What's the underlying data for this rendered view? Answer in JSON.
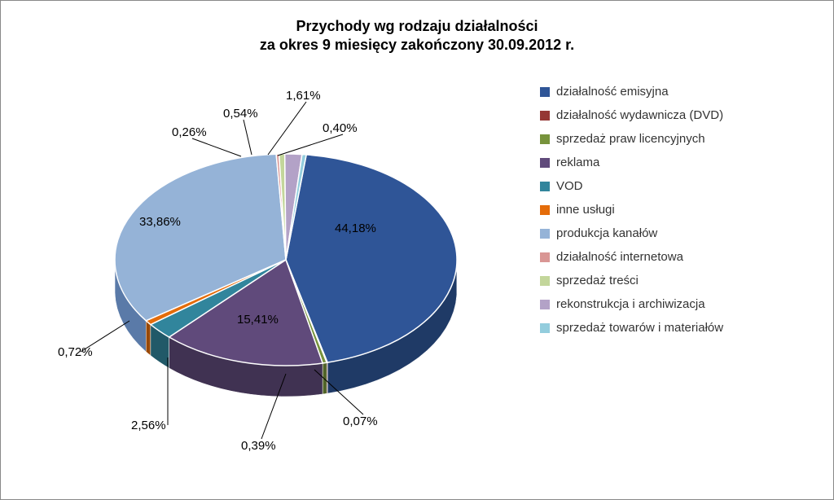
{
  "title": {
    "line1": "Przychody wg rodzaju działalności",
    "line2": "za okres 9 miesięcy zakończony 30.09.2012 r.",
    "fontsize": 18,
    "fontweight": "bold",
    "color": "#000000"
  },
  "chart": {
    "type": "pie-3d",
    "background_color": "#ffffff",
    "border_color": "#888888",
    "legend_position": "right",
    "legend_fontsize": 15,
    "legend_text_color": "#333333",
    "label_fontsize": 15,
    "label_color": "#000000",
    "slices": [
      {
        "label": "działalność emisyjna",
        "value": 44.18,
        "display": "44,18%",
        "color": "#2f5597",
        "side_color": "#1f3a66"
      },
      {
        "label": "działalność wydawnicza (DVD)",
        "value": 0.07,
        "display": "0,07%",
        "color": "#953734",
        "side_color": "#632422"
      },
      {
        "label": "sprzedaż praw licencyjnych",
        "value": 0.39,
        "display": "0,39%",
        "color": "#77933c",
        "side_color": "#506328"
      },
      {
        "label": "reklama",
        "value": 15.41,
        "display": "15,41%",
        "color": "#604a7b",
        "side_color": "#403252"
      },
      {
        "label": "VOD",
        "value": 2.56,
        "display": "2,56%",
        "color": "#31859c",
        "side_color": "#215968"
      },
      {
        "label": "inne usługi",
        "value": 0.72,
        "display": "0,72%",
        "color": "#e46c0a",
        "side_color": "#984807"
      },
      {
        "label": "produkcja kanałów",
        "value": 33.86,
        "display": "33,86%",
        "color": "#95b3d7",
        "side_color": "#5a7aa8"
      },
      {
        "label": "działalność internetowa",
        "value": 0.26,
        "display": "0,26%",
        "color": "#d99694",
        "side_color": "#a05e5c"
      },
      {
        "label": "sprzedaż treści",
        "value": 0.54,
        "display": "0,54%",
        "color": "#c3d69b",
        "side_color": "#8aa060"
      },
      {
        "label": "rekonstrukcja i archiwizacja",
        "value": 1.61,
        "display": "1,61%",
        "color": "#b3a2c7",
        "side_color": "#7a6d8a"
      },
      {
        "label": "sprzedaż towarów i materiałów",
        "value": 0.4,
        "display": "0,40%",
        "color": "#93cddd",
        "side_color": "#5e94a3"
      }
    ]
  }
}
